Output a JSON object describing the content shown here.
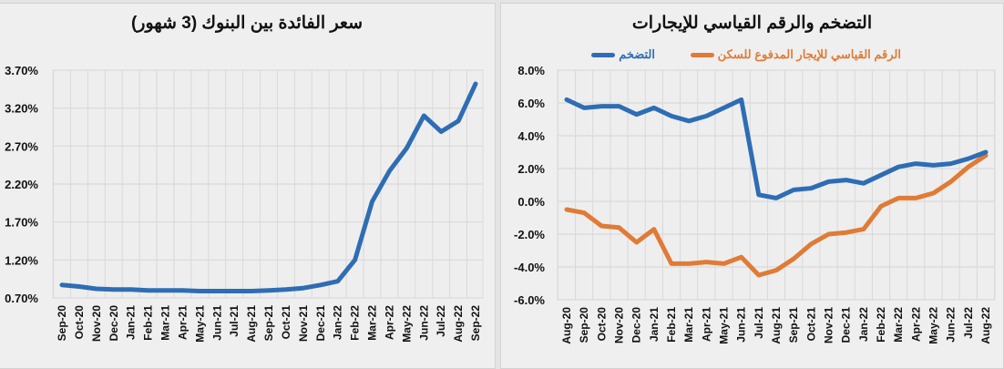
{
  "chart_data": [
    {
      "type": "line",
      "title": "سعر الفائدة بين البنوك (3 شهور)",
      "xlabel": "",
      "ylabel": "",
      "ylim": [
        0.7,
        3.7
      ],
      "yticks": [
        "0.70%",
        "1.20%",
        "1.70%",
        "2.20%",
        "2.70%",
        "3.20%",
        "3.70%"
      ],
      "grid": true,
      "legend_position": "none",
      "categories": [
        "Sep-20",
        "Oct-20",
        "Nov-20",
        "Dec-20",
        "Jan-21",
        "Feb-21",
        "Mar-21",
        "Apr-21",
        "May-21",
        "Jun-21",
        "Jul-21",
        "Aug-21",
        "Sep-21",
        "Oct-21",
        "Nov-21",
        "Dec-21",
        "Jan-22",
        "Feb-22",
        "Mar-22",
        "Apr-22",
        "May-22",
        "Jun-22",
        "Jul-22",
        "Aug-22",
        "Sep-22"
      ],
      "series": [
        {
          "name": "سعر الفائدة بين البنوك (3 شهور)",
          "color": "#2e6db4",
          "values": [
            0.87,
            0.85,
            0.82,
            0.81,
            0.81,
            0.8,
            0.8,
            0.8,
            0.79,
            0.79,
            0.79,
            0.79,
            0.8,
            0.81,
            0.83,
            0.87,
            0.92,
            1.2,
            1.97,
            2.37,
            2.67,
            3.1,
            2.89,
            3.03,
            3.52
          ]
        }
      ]
    },
    {
      "type": "line",
      "title": "التضخم والرقم القياسي للإيجارات",
      "xlabel": "",
      "ylabel": "",
      "ylim": [
        -6.0,
        8.0
      ],
      "yticks": [
        "-6.0%",
        "-4.0%",
        "-2.0%",
        "0.0%",
        "2.0%",
        "4.0%",
        "6.0%",
        "8.0%"
      ],
      "grid": true,
      "legend_position": "top",
      "categories": [
        "Aug-20",
        "Sep-20",
        "Oct-20",
        "Nov-20",
        "Dec-20",
        "Jan-21",
        "Feb-21",
        "Mar-21",
        "Apr-21",
        "May-21",
        "Jun-21",
        "Jul-21",
        "Aug-21",
        "Sep-21",
        "Oct-21",
        "Nov-21",
        "Dec-21",
        "Jan-22",
        "Feb-22",
        "Mar-22",
        "Apr-22",
        "May-22",
        "Jun-22",
        "Jul-22",
        "Aug-22"
      ],
      "series": [
        {
          "name": "التضخم",
          "color": "#2e6db4",
          "values": [
            6.2,
            5.7,
            5.8,
            5.8,
            5.3,
            5.7,
            5.2,
            4.9,
            5.2,
            5.7,
            6.2,
            0.4,
            0.2,
            0.7,
            0.8,
            1.2,
            1.3,
            1.1,
            1.6,
            2.1,
            2.3,
            2.2,
            2.3,
            2.6,
            3.0
          ]
        },
        {
          "name": "الرقم القياسي للإيجار المدفوع للسكن",
          "color": "#e07b36",
          "values": [
            -0.5,
            -0.7,
            -1.5,
            -1.6,
            -2.5,
            -1.7,
            -3.8,
            -3.8,
            -3.7,
            -3.8,
            -3.4,
            -4.5,
            -4.2,
            -3.5,
            -2.6,
            -2.0,
            -1.9,
            -1.7,
            -0.3,
            0.2,
            0.2,
            0.5,
            1.2,
            2.1,
            2.8
          ]
        }
      ]
    }
  ]
}
